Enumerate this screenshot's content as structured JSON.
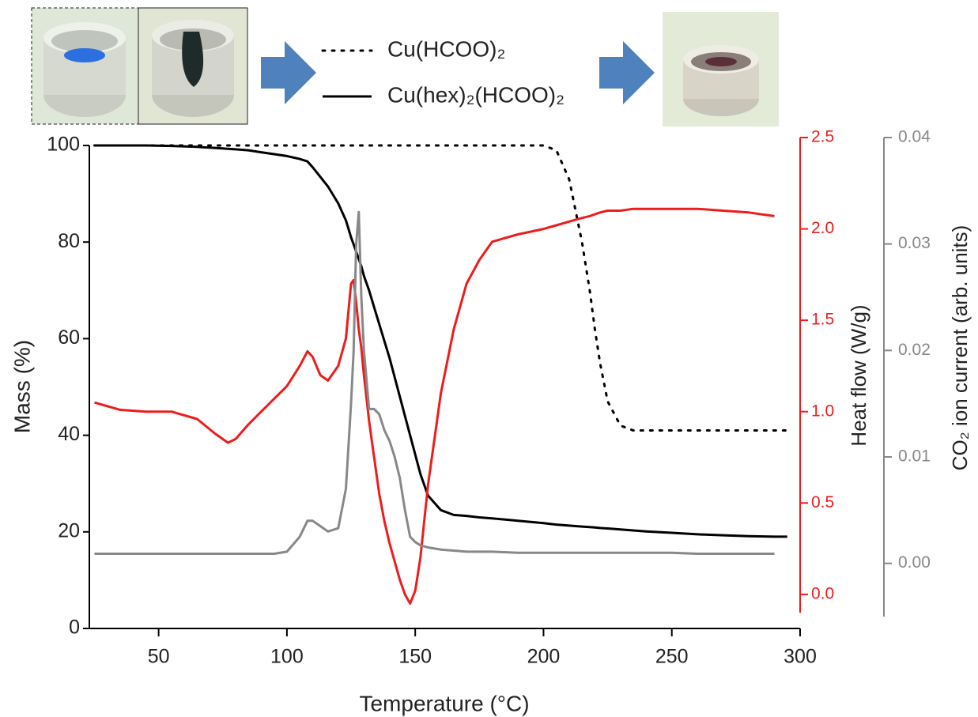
{
  "chart_data": {
    "type": "line",
    "x_label": "Temperature (°C)",
    "y_label": "Mass (%)",
    "y2_label": "Heat flow (W/g)",
    "y3_label": "CO₂ ion current (arb. units)",
    "xlim": [
      23,
      300
    ],
    "xticks": [
      50,
      100,
      150,
      200,
      250,
      300
    ],
    "ylim": [
      0,
      100
    ],
    "yticks": [
      0,
      20,
      40,
      60,
      80,
      100
    ],
    "y2lim": [
      -0.1,
      2.5
    ],
    "y2ticks": [
      {
        "value": 0,
        "label": "0.0"
      },
      0.5,
      {
        "value": 1,
        "label": "1.0"
      },
      1.5,
      {
        "value": 2,
        "label": "2.0"
      },
      2.5
    ],
    "y3lim": [
      -0.005,
      0.04
    ],
    "y3ticks": [
      {
        "value": 0,
        "label": "0.00"
      },
      0.01,
      0.02,
      0.03,
      0.04
    ],
    "x": [
      25,
      35,
      45,
      55,
      65,
      72,
      77,
      80,
      85,
      90,
      95,
      100,
      105,
      108,
      110,
      113,
      116,
      120,
      123,
      125,
      126,
      127,
      128,
      129,
      130,
      132,
      134,
      136,
      138,
      140,
      142,
      144,
      146,
      148,
      150,
      152,
      155,
      160,
      165,
      170,
      175,
      180,
      190,
      200,
      205,
      210,
      215,
      218,
      220,
      222,
      225,
      230,
      235,
      240,
      250,
      260,
      270,
      280,
      290,
      295
    ],
    "series": [
      {
        "name": "Cu(HCOO)₂",
        "color": "#000000",
        "style": "dotted",
        "axis": "y",
        "values": [
          100,
          100,
          100,
          100,
          100,
          100,
          100,
          100,
          100,
          100,
          100,
          100,
          100,
          100,
          100,
          100,
          100,
          100,
          100,
          100,
          100,
          100,
          100,
          100,
          100,
          100,
          100,
          100,
          100,
          100,
          100,
          100,
          100,
          100,
          100,
          100,
          100,
          100,
          100,
          100,
          100,
          100,
          100,
          100,
          99,
          93,
          80,
          70,
          62,
          55,
          47,
          42,
          41,
          41,
          41,
          41,
          41,
          41,
          41,
          41
        ]
      },
      {
        "name": "Cu(hex)₂(HCOO)₂",
        "color": "#000000",
        "style": "solid",
        "axis": "y",
        "values": [
          100,
          100,
          100,
          99.9,
          99.7,
          99.5,
          99.3,
          99.2,
          99,
          98.6,
          98.2,
          97.8,
          97.2,
          96.7,
          95.5,
          93.5,
          91.5,
          88,
          84.5,
          81,
          79.5,
          78,
          76.5,
          75,
          73,
          70,
          66.5,
          63,
          59.5,
          56,
          52,
          48,
          44,
          40,
          36,
          32,
          27.5,
          24.5,
          23.5,
          23.3,
          23,
          22.8,
          22.3,
          21.8,
          21.5,
          21.3,
          21.1,
          21,
          20.9,
          20.8,
          20.7,
          20.5,
          20.3,
          20.1,
          19.8,
          19.5,
          19.3,
          19.1,
          19,
          19
        ]
      },
      {
        "color": "#ee1c1c",
        "style": "solid",
        "axis": "y2",
        "values": [
          1.05,
          1.01,
          1,
          1,
          0.96,
          0.88,
          0.83,
          0.85,
          0.93,
          1,
          1.07,
          1.14,
          1.25,
          1.33,
          1.3,
          1.2,
          1.17,
          1.25,
          1.4,
          1.7,
          1.72,
          1.6,
          1.45,
          1.35,
          1.2,
          0.95,
          0.75,
          0.55,
          0.4,
          0.28,
          0.18,
          0.08,
          0,
          -0.05,
          0.02,
          0.2,
          0.6,
          1.1,
          1.45,
          1.7,
          1.83,
          1.93,
          1.97,
          2,
          2.02,
          2.04,
          2.06,
          2.07,
          2.08,
          2.09,
          2.1,
          2.1,
          2.11,
          2.11,
          2.11,
          2.11,
          2.1,
          2.09,
          2.07,
          null
        ]
      },
      {
        "color": "#888888",
        "style": "solid",
        "axis": "y3",
        "values": [
          0.0009,
          0.0009,
          0.0009,
          0.0009,
          0.0009,
          0.0009,
          0.0009,
          0.0009,
          0.0009,
          0.0009,
          0.0009,
          0.0011,
          0.0025,
          0.004,
          0.004,
          0.0035,
          0.003,
          0.0033,
          0.007,
          0.015,
          0.02,
          0.03,
          0.033,
          0.025,
          0.02,
          0.0145,
          0.0145,
          0.014,
          0.0125,
          0.0115,
          0.01,
          0.008,
          0.005,
          0.0025,
          0.002,
          0.0017,
          0.0015,
          0.0013,
          0.0012,
          0.0011,
          0.0011,
          0.0011,
          0.001,
          0.001,
          0.001,
          0.001,
          0.001,
          0.001,
          0.001,
          0.001,
          0.001,
          0.001,
          0.001,
          0.001,
          0.001,
          0.0009,
          0.0009,
          0.0009,
          0.0009,
          null
        ]
      }
    ]
  }
}
